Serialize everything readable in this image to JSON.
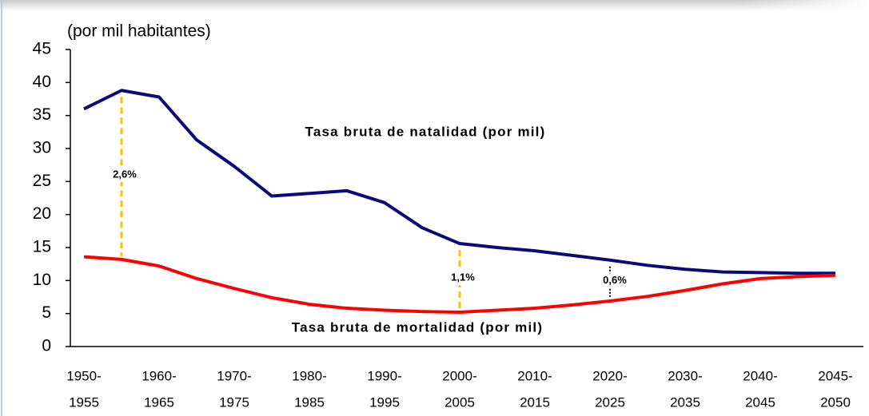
{
  "chart_data": {
    "type": "line",
    "title": "(por mil habitantes)",
    "categories": [
      [
        "1950-",
        "1955"
      ],
      null,
      [
        "1960-",
        "1965"
      ],
      null,
      [
        "1970-",
        "1975"
      ],
      null,
      [
        "1980-",
        "1985"
      ],
      null,
      [
        "1990-",
        "1995"
      ],
      null,
      [
        "2000-",
        "2005"
      ],
      null,
      [
        "2010-",
        "2015"
      ],
      null,
      [
        "2020-",
        "2025"
      ],
      null,
      [
        "2030-",
        "2035"
      ],
      null,
      [
        "2040-",
        "2045"
      ],
      null,
      [
        "2045-",
        "2050"
      ]
    ],
    "series": [
      {
        "name": "Tasa bruta de natalidad (por mil)",
        "color": "#0a0a7a",
        "values": [
          36,
          38.8,
          37.8,
          31.3,
          27.3,
          22.8,
          23.2,
          23.6,
          21.8,
          18,
          15.6,
          15,
          14.5,
          13.8,
          13.1,
          12.3,
          11.7,
          11.3,
          11.2,
          11.1,
          11.1
        ]
      },
      {
        "name": "Tasa bruta de mortalidad (por mil)",
        "color": "#ff0000",
        "values": [
          13.6,
          13.2,
          12.2,
          10.3,
          8.8,
          7.4,
          6.4,
          5.8,
          5.5,
          5.3,
          5.2,
          5.5,
          5.8,
          6.3,
          6.9,
          7.6,
          8.5,
          9.5,
          10.3,
          10.6,
          10.8
        ]
      }
    ],
    "annotations": [
      "2,6%",
      "1,1%",
      "0,6%"
    ],
    "ylim": [
      0,
      45
    ],
    "yticks": [
      0,
      5,
      10,
      15,
      20,
      25,
      30,
      35,
      40,
      45
    ]
  }
}
